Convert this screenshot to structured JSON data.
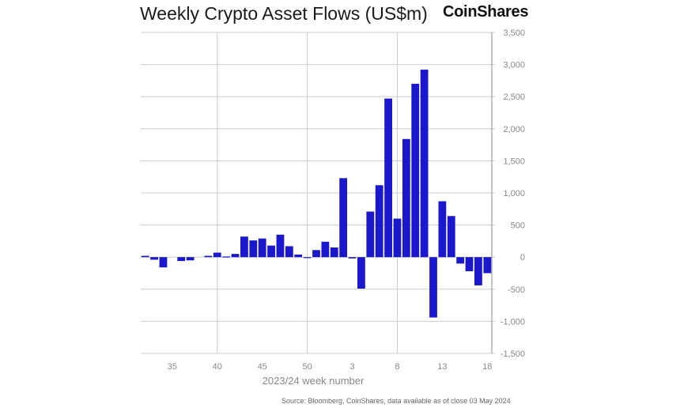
{
  "brand": {
    "name": "CoinShares"
  },
  "source": "Source: Bloomberg, CoinShares, data available as of close 03 May 2024",
  "colors": {
    "bar": "#1a17cc",
    "grid": "#cccccc",
    "axis": "#888888"
  },
  "chart_data": {
    "type": "bar",
    "title": "Weekly Crypto Asset Flows (US$m)",
    "xlabel": "2023/24 week number",
    "ylabel": "",
    "ylim": [
      -1500,
      3500
    ],
    "yticks": [
      3500,
      3000,
      2500,
      2000,
      1500,
      1000,
      500,
      0,
      -500,
      -1000,
      -1500
    ],
    "ytick_labels": [
      "3,500",
      "3,000",
      "2,500",
      "2,000",
      "1,500",
      "1,000",
      "500",
      "0",
      "-500",
      "-1,000",
      "-1,500"
    ],
    "y_axis_position": "right",
    "grid": true,
    "categories": [
      32,
      33,
      34,
      35,
      36,
      37,
      38,
      39,
      40,
      41,
      42,
      43,
      44,
      45,
      46,
      47,
      48,
      49,
      50,
      51,
      52,
      1,
      2,
      3,
      4,
      5,
      6,
      7,
      8,
      9,
      10,
      11,
      12,
      13,
      14,
      15,
      16,
      17,
      18
    ],
    "values": [
      20,
      -40,
      -160,
      0,
      -60,
      -50,
      0,
      20,
      70,
      10,
      50,
      320,
      260,
      290,
      180,
      350,
      170,
      40,
      -10,
      110,
      240,
      150,
      1230,
      -20,
      -490,
      710,
      1120,
      2470,
      600,
      1840,
      2700,
      2920,
      -940,
      870,
      640,
      -100,
      -220,
      -440,
      -250
    ],
    "xtick_labels": [
      "35",
      "40",
      "45",
      "50",
      "3",
      "8",
      "13",
      "18"
    ],
    "xtick_indices": [
      3,
      8,
      13,
      18,
      23,
      28,
      33,
      38
    ],
    "x_gridline_indices": [
      8.5,
      18.5,
      28.5
    ]
  }
}
